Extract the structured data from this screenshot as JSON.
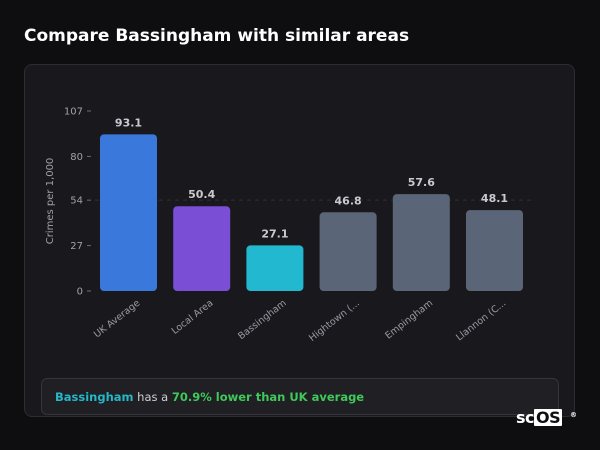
{
  "page": {
    "title": "Compare Bassingham with similar areas"
  },
  "chart_data": {
    "type": "bar",
    "ylabel": "Crimes per 1,000",
    "xlabel": "",
    "ylim": [
      0,
      107
    ],
    "yticks": [
      0,
      27,
      54,
      80,
      107
    ],
    "categories": [
      "UK Average",
      "Local Area",
      "Bassingham",
      "Hightown (...",
      "Empingham",
      "Llannon (C..."
    ],
    "values": [
      93.1,
      50.4,
      27.1,
      46.8,
      57.6,
      48.1
    ],
    "value_labels": [
      "93.1",
      "50.4",
      "27.1",
      "46.8",
      "57.6",
      "48.1"
    ],
    "colors": [
      "#3a78dc",
      "#7a4fd6",
      "#22b8d0",
      "#5a6578",
      "#5a6578",
      "#5a6578"
    ],
    "reference_line": {
      "value": 54,
      "style": "dashed"
    },
    "grid": false
  },
  "summary": {
    "area": "Bassingham",
    "middle": " has a ",
    "stat": "70.9% lower than UK average"
  },
  "logo": {
    "prefix": "sc",
    "boxed": "OS",
    "reg": "®"
  }
}
